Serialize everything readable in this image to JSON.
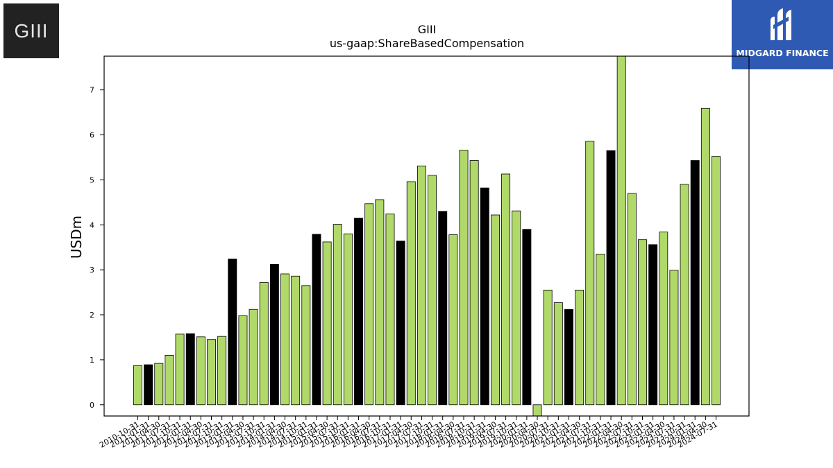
{
  "logos": {
    "left_text": "GIII",
    "right_text": "MIDGARD FINANCE",
    "right_icon": "midgard-logo-icon"
  },
  "colors": {
    "bar_default": "#b0d96a",
    "bar_highlight": "#000000",
    "logo_left_bg": "#222222",
    "logo_right_bg": "#2f5ab4"
  },
  "chart_data": {
    "type": "bar",
    "title": "GIII",
    "subtitle": "us-gaap:ShareBasedCompensation",
    "xlabel": "",
    "ylabel": "USDm",
    "ylim": [
      -0.25,
      7.75
    ],
    "yticks": [
      0,
      1,
      2,
      3,
      4,
      5,
      6,
      7
    ],
    "grid": false,
    "categories": [
      "2010-10-31",
      "2011-01-31",
      "2011-04-30",
      "2011-07-31",
      "2011-10-31",
      "2012-01-31",
      "2012-04-30",
      "2012-07-31",
      "2012-10-31",
      "2013-01-31",
      "2013-04-30",
      "2013-07-31",
      "2013-10-31",
      "2014-01-31",
      "2014-04-30",
      "2014-07-31",
      "2014-10-31",
      "2015-01-31",
      "2015-04-30",
      "2015-07-31",
      "2015-10-31",
      "2016-01-31",
      "2016-04-30",
      "2016-07-31",
      "2016-10-31",
      "2017-01-31",
      "2017-04-30",
      "2017-07-31",
      "2017-10-31",
      "2018-01-31",
      "2018-04-30",
      "2018-07-31",
      "2018-10-31",
      "2019-01-31",
      "2019-04-30",
      "2019-07-31",
      "2019-10-31",
      "2020-01-31",
      "2020-04-30",
      "2020-07-31",
      "2020-10-31",
      "2021-01-31",
      "2021-04-30",
      "2021-07-31",
      "2021-10-31",
      "2022-01-31",
      "2022-04-30",
      "2022-07-31",
      "2022-10-31",
      "2023-01-31",
      "2023-04-30",
      "2023-07-31",
      "2023-10-31",
      "2024-01-31",
      "2024-04-30",
      "2024-07-31"
    ],
    "values": [
      0.87,
      0.89,
      0.92,
      1.1,
      1.57,
      1.58,
      1.51,
      1.45,
      1.52,
      3.24,
      1.98,
      2.12,
      2.72,
      3.12,
      2.91,
      2.86,
      2.65,
      3.79,
      3.62,
      4.01,
      3.8,
      4.15,
      4.47,
      4.56,
      4.24,
      3.64,
      4.96,
      5.31,
      5.1,
      4.3,
      3.78,
      5.66,
      5.43,
      4.82,
      4.22,
      5.13,
      4.31,
      3.9,
      -0.25,
      2.55,
      2.27,
      2.12,
      2.55,
      5.86,
      3.35,
      5.65,
      7.75,
      4.7,
      3.67,
      3.56,
      3.84,
      2.99,
      4.9,
      5.43,
      6.59,
      5.52
    ],
    "highlight": [
      false,
      true,
      false,
      false,
      false,
      true,
      false,
      false,
      false,
      true,
      false,
      false,
      false,
      true,
      false,
      false,
      false,
      true,
      false,
      false,
      false,
      true,
      false,
      false,
      false,
      true,
      false,
      false,
      false,
      true,
      false,
      false,
      false,
      true,
      false,
      false,
      false,
      true,
      false,
      false,
      false,
      true,
      false,
      false,
      false,
      true,
      false,
      false,
      false,
      true,
      false,
      false,
      false,
      true,
      false,
      false
    ]
  }
}
